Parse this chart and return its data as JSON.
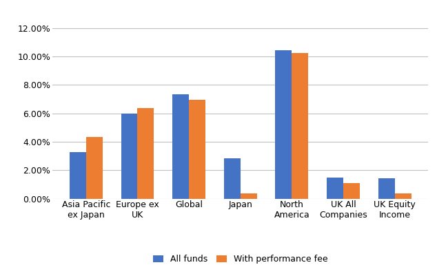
{
  "categories": [
    "Asia Pacific\nex Japan",
    "Europe ex\nUK",
    "Global",
    "Japan",
    "North\nAmerica",
    "UK All\nCompanies",
    "UK Equity\nIncome"
  ],
  "all_funds": [
    0.033,
    0.06,
    0.0735,
    0.0285,
    0.1045,
    0.015,
    0.0145
  ],
  "with_perf_fee": [
    0.0435,
    0.0635,
    0.0695,
    0.0035,
    0.1025,
    0.011,
    0.0035
  ],
  "color_all_funds": "#4472C4",
  "color_perf_fee": "#ED7D31",
  "legend_labels": [
    "All funds",
    "With performance fee"
  ],
  "ylim": [
    0,
    0.13
  ],
  "yticks": [
    0.0,
    0.02,
    0.04,
    0.06,
    0.08,
    0.1,
    0.12
  ],
  "background_color": "#FFFFFF",
  "grid_color": "#C0C0C0",
  "bar_width": 0.32,
  "tick_fontsize": 9,
  "legend_fontsize": 9
}
